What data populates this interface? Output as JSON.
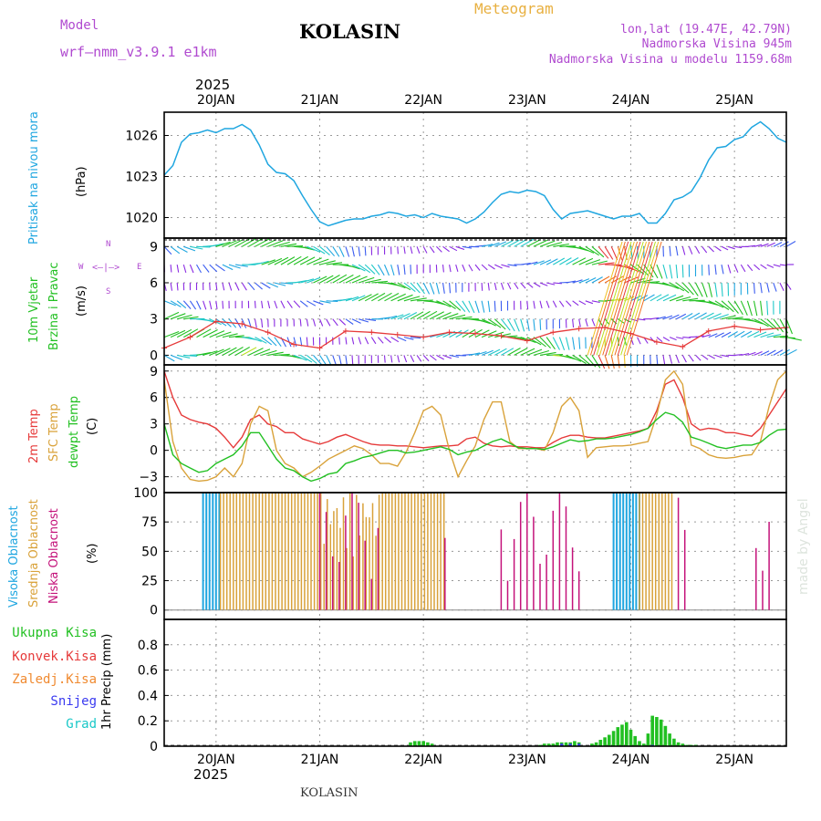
{
  "header": {
    "model_label": "Model",
    "model_name": "wrf–nmm_v3.9.1  e1km",
    "station": "KOLASIN",
    "meteogram_title": "Meteogram",
    "lonlat": "lon,lat (19.47E, 42.79N)",
    "altitude": "Nadmorska Visina 945m",
    "model_altitude": "Nadmorska Visina u modelu 1159.68m",
    "year": "2025",
    "footer_station": "KOLASIN",
    "watermark": "made by Angel"
  },
  "colors": {
    "pressure": "#1fa6e0",
    "temp2m": "#e63a3a",
    "sfc_temp": "#d9a23a",
    "dewpoint": "#22c022",
    "high_cloud": "#1fa6e0",
    "mid_cloud": "#d9a23a",
    "low_cloud": "#c4127a",
    "precip_total": "#22c022",
    "precip_conv": "#e63a3a",
    "precip_frozen": "#f08a30",
    "precip_snow": "#3a3af0",
    "precip_hail": "#1ac8c8",
    "wind_label": "#22c022",
    "wind_compass": "#b04ad0",
    "wind_speed_line": "#e63a3a"
  },
  "legend": {
    "pressure_label": "Pritisak na nivou mora",
    "pressure_unit": "(hPa)",
    "wind_label_1": "10m Vjetar",
    "wind_label_2": "Brzina i Pravac",
    "wind_unit": "(m/s)",
    "wind_compass_n": "N",
    "wind_compass_s": "S",
    "wind_compass_w": "W",
    "wind_compass_e": "E",
    "wind_compass_glyph": "<–|–>",
    "temp_2m": "2m Temp",
    "temp_sfc": "SFC Temp",
    "temp_dew": "dewpt Temp",
    "temp_unit": "(C)",
    "cloud_high": "Visoka Oblacnost",
    "cloud_mid": "Srednja Oblacnost",
    "cloud_low": "Niska Oblacnost",
    "cloud_unit": "(%)",
    "precip_total": "Ukupna Kisa",
    "precip_conv": "Konvek.Kisa",
    "precip_frozen": "Zaledj.Kisa",
    "precip_snow": "Snijeg",
    "precip_hail": "Grad",
    "precip_unit": "1hr Precip (mm)"
  },
  "chart_data": {
    "type": "line",
    "x_ticks": [
      "20JAN",
      "21JAN",
      "22JAN",
      "23JAN",
      "24JAN",
      "25JAN"
    ],
    "x_tick_hours": [
      12,
      36,
      60,
      84,
      108,
      132
    ],
    "x_range_hours": [
      0,
      144
    ],
    "panels": [
      {
        "id": "pressure",
        "type": "line",
        "ylim": [
          1018.5,
          1027.7
        ],
        "yticks": [
          1020,
          1023,
          1026
        ],
        "x": [
          0,
          2,
          4,
          6,
          8,
          10,
          12,
          14,
          16,
          18,
          20,
          22,
          24,
          26,
          28,
          30,
          32,
          34,
          36,
          38,
          40,
          42,
          44,
          46,
          48,
          50,
          52,
          54,
          56,
          58,
          60,
          62,
          64,
          66,
          68,
          70,
          72,
          74,
          76,
          78,
          80,
          82,
          84,
          86,
          88,
          90,
          92,
          94,
          96,
          98,
          100,
          102,
          104,
          106,
          108,
          110,
          112,
          114,
          116,
          118,
          120,
          122,
          124,
          126,
          128,
          130,
          132,
          134,
          136,
          138,
          140,
          142,
          144
        ],
        "series": [
          {
            "name": "Pritisak na nivou mora",
            "values": [
              1023.1,
              1023.8,
              1025.5,
              1026.1,
              1026.2,
              1026.4,
              1026.2,
              1026.5,
              1026.5,
              1026.8,
              1026.4,
              1025.3,
              1023.9,
              1023.3,
              1023.2,
              1022.7,
              1021.6,
              1020.6,
              1019.7,
              1019.4,
              1019.6,
              1019.8,
              1019.9,
              1019.9,
              1020.1,
              1020.2,
              1020.4,
              1020.3,
              1020.1,
              1020.2,
              1020.0,
              1020.3,
              1020.1,
              1020.0,
              1019.9,
              1019.6,
              1019.9,
              1020.4,
              1021.1,
              1021.7,
              1021.9,
              1021.8,
              1022.0,
              1021.9,
              1021.6,
              1020.6,
              1019.9,
              1020.3,
              1020.4,
              1020.5,
              1020.3,
              1020.1,
              1019.9,
              1020.1,
              1020.1,
              1020.3,
              1019.6,
              1019.6,
              1020.3,
              1021.3,
              1021.5,
              1021.9,
              1022.9,
              1024.2,
              1025.1,
              1025.2,
              1025.7,
              1025.9,
              1026.6,
              1027.0,
              1026.5,
              1025.8,
              1025.5
            ]
          }
        ]
      },
      {
        "id": "wind",
        "type": "line",
        "ylim": [
          -0.8,
          9.7
        ],
        "yticks": [
          0,
          3,
          6,
          9
        ],
        "arrow_rows": [
          0,
          1.5,
          3,
          4.5,
          6,
          7.5,
          9
        ],
        "x": [
          0,
          6,
          12,
          18,
          24,
          30,
          36,
          42,
          48,
          54,
          60,
          66,
          72,
          78,
          84,
          90,
          96,
          102,
          108,
          114,
          120,
          126,
          132,
          138,
          144
        ],
        "series": [
          {
            "name": "10m Vjetar",
            "values": [
              0.6,
              1.5,
              2.8,
              2.6,
              1.9,
              0.9,
              0.6,
              2.0,
              1.9,
              1.7,
              1.5,
              1.9,
              1.8,
              1.6,
              1.2,
              1.9,
              2.2,
              2.3,
              1.8,
              1.1,
              0.7,
              2.0,
              2.4,
              2.1,
              2.3
            ]
          }
        ]
      },
      {
        "id": "temperature",
        "type": "line",
        "ylim": [
          -4.8,
          9.7
        ],
        "yticks": [
          -3,
          0,
          3,
          6,
          9
        ],
        "x": [
          0,
          2,
          4,
          6,
          8,
          10,
          12,
          14,
          16,
          18,
          20,
          22,
          24,
          26,
          28,
          30,
          32,
          34,
          36,
          38,
          40,
          42,
          44,
          46,
          48,
          50,
          52,
          54,
          56,
          58,
          60,
          62,
          64,
          66,
          68,
          70,
          72,
          74,
          76,
          78,
          80,
          82,
          84,
          86,
          88,
          90,
          92,
          94,
          96,
          98,
          100,
          102,
          104,
          106,
          108,
          110,
          112,
          114,
          116,
          118,
          120,
          122,
          124,
          126,
          128,
          130,
          132,
          134,
          136,
          138,
          140,
          142,
          144
        ],
        "series": [
          {
            "name": "2m Temp",
            "values": [
              9.0,
              6.0,
              4.0,
              3.5,
              3.2,
              3.0,
              2.5,
              1.5,
              0.3,
              1.5,
              3.5,
              4.0,
              3.0,
              2.7,
              2.0,
              2.0,
              1.3,
              1.0,
              0.7,
              1.0,
              1.5,
              1.8,
              1.4,
              1.0,
              0.7,
              0.6,
              0.6,
              0.5,
              0.5,
              0.4,
              0.3,
              0.4,
              0.5,
              0.5,
              0.6,
              1.3,
              1.5,
              0.8,
              0.5,
              0.4,
              0.5,
              0.4,
              0.4,
              0.3,
              0.3,
              0.9,
              1.4,
              1.7,
              1.7,
              1.5,
              1.4,
              1.4,
              1.6,
              1.8,
              2.0,
              2.2,
              2.5,
              4.5,
              7.5,
              8.0,
              6.0,
              3.0,
              2.3,
              2.5,
              2.4,
              2.0,
              2.0,
              1.8,
              1.6,
              2.5,
              4.0,
              5.5,
              7.0
            ]
          },
          {
            "name": "SFC Temp",
            "values": [
              8.0,
              1.0,
              -2.0,
              -3.3,
              -3.5,
              -3.4,
              -3.0,
              -2.0,
              -3.0,
              -1.5,
              3.0,
              5.0,
              4.5,
              0.0,
              -1.5,
              -2.0,
              -3.0,
              -2.5,
              -1.8,
              -1.0,
              -0.5,
              0.0,
              0.5,
              0.2,
              -0.5,
              -1.5,
              -1.5,
              -1.8,
              -0.2,
              2.0,
              4.5,
              5.0,
              4.0,
              0.0,
              -3.0,
              -1.2,
              0.5,
              3.5,
              5.5,
              5.5,
              1.0,
              0.2,
              0.2,
              0.2,
              0.0,
              2.0,
              5.0,
              6.0,
              4.5,
              -0.8,
              0.3,
              0.4,
              0.5,
              0.5,
              0.6,
              0.8,
              1.0,
              4.0,
              8.0,
              9.0,
              7.5,
              0.6,
              0.2,
              -0.5,
              -0.8,
              -0.9,
              -0.8,
              -0.6,
              -0.5,
              1.0,
              5.0,
              8.0,
              9.0
            ]
          },
          {
            "name": "dewpt Temp",
            "values": [
              3.0,
              -0.5,
              -1.5,
              -2.0,
              -2.5,
              -2.3,
              -1.5,
              -1.0,
              -0.5,
              0.5,
              2.0,
              2.0,
              0.5,
              -1.0,
              -2.0,
              -2.3,
              -3.0,
              -3.5,
              -3.2,
              -2.7,
              -2.5,
              -1.5,
              -1.2,
              -0.8,
              -0.6,
              -0.3,
              0.0,
              0.0,
              -0.3,
              -0.2,
              0.0,
              0.2,
              0.4,
              0.1,
              -0.5,
              -0.2,
              0.0,
              0.5,
              1.0,
              1.3,
              0.8,
              0.3,
              0.2,
              0.2,
              0.1,
              0.4,
              0.8,
              1.2,
              1.0,
              1.1,
              1.3,
              1.3,
              1.4,
              1.6,
              1.8,
              2.1,
              2.5,
              3.5,
              4.3,
              4.0,
              3.2,
              1.5,
              1.2,
              0.8,
              0.4,
              0.2,
              0.4,
              0.6,
              0.6,
              0.9,
              1.7,
              2.3,
              2.4
            ]
          }
        ]
      },
      {
        "id": "cloud",
        "type": "bar",
        "ylim": [
          -8,
          100
        ],
        "yticks": [
          0,
          25,
          50,
          75,
          100
        ],
        "series": [
          {
            "name": "Visoka Oblacnost",
            "ranges": [
              [
                9,
                13
              ],
              [
                104,
                110
              ]
            ],
            "value": 100
          },
          {
            "name": "Srednja Oblacnost",
            "ranges": [
              [
                13,
                65
              ],
              [
                110,
                118
              ]
            ],
            "value": 100
          },
          {
            "name": "Niska Oblacnost",
            "ranges": [
              [
                36,
                50
              ],
              [
                65,
                66
              ],
              [
                78,
                96
              ],
              [
                119,
                121
              ],
              [
                137,
                141
              ]
            ],
            "value": 60
          }
        ]
      },
      {
        "id": "precip",
        "type": "bar",
        "ylim": [
          0,
          1.0
        ],
        "yticks": [
          0,
          0.2,
          0.4,
          0.6,
          0.8
        ],
        "series": [
          {
            "name": "Ukupna Kisa",
            "x": [
              57,
              58,
              59,
              60,
              61,
              62,
              87,
              88,
              89,
              90,
              91,
              92,
              93,
              94,
              95,
              96,
              99,
              100,
              101,
              102,
              103,
              104,
              105,
              106,
              107,
              108,
              109,
              110,
              111,
              112,
              113,
              114,
              115,
              116,
              117,
              118,
              119,
              120,
              121,
              122,
              123
            ],
            "values": [
              0.03,
              0.04,
              0.04,
              0.04,
              0.03,
              0.02,
              0.01,
              0.02,
              0.02,
              0.02,
              0.03,
              0.03,
              0.03,
              0.03,
              0.04,
              0.03,
              0.02,
              0.03,
              0.05,
              0.07,
              0.09,
              0.12,
              0.15,
              0.17,
              0.19,
              0.13,
              0.08,
              0.04,
              0.02,
              0.1,
              0.24,
              0.23,
              0.21,
              0.16,
              0.1,
              0.06,
              0.03,
              0.02,
              0.01,
              0.01,
              0.01
            ]
          },
          {
            "name": "Snijeg",
            "x": [
              92,
              94,
              96,
              113
            ],
            "values": [
              0.02,
              0.02,
              0.02,
              0.01
            ]
          }
        ]
      }
    ]
  }
}
